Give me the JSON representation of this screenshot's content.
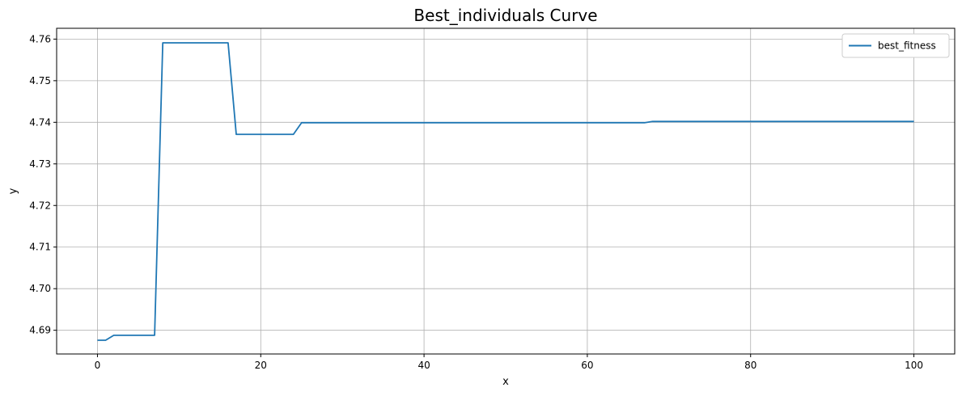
{
  "chart_data": {
    "type": "line",
    "title": "Best_individuals Curve",
    "xlabel": "x",
    "ylabel": "y",
    "xlim": [
      -5,
      105
    ],
    "ylim": [
      4.6843,
      4.7626
    ],
    "xticks": [
      0,
      20,
      40,
      60,
      80,
      100
    ],
    "yticks": [
      4.69,
      4.7,
      4.71,
      4.72,
      4.73,
      4.74,
      4.75,
      4.76
    ],
    "ytick_labels": [
      "4.69",
      "4.70",
      "4.71",
      "4.72",
      "4.73",
      "4.74",
      "4.75",
      "4.76"
    ],
    "grid": true,
    "legend_position": "top-right",
    "series": [
      {
        "name": "best_fitness",
        "color": "#1f77b4",
        "x": [
          0,
          1,
          2,
          7,
          8,
          16,
          17,
          24,
          25,
          67,
          68,
          100
        ],
        "y": [
          4.6876,
          4.6876,
          4.6888,
          4.6888,
          4.7591,
          4.7591,
          4.7371,
          4.7371,
          4.7399,
          4.7399,
          4.7402,
          4.7402
        ]
      }
    ]
  }
}
